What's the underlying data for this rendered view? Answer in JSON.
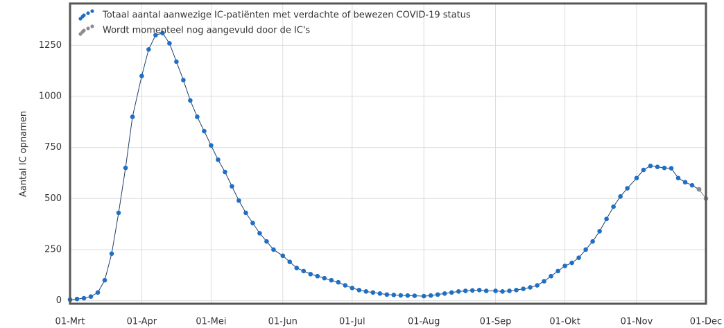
{
  "chart_data": {
    "type": "line",
    "y_label": "Aantal IC opnamen",
    "x": [
      "01-Mrt",
      "04-Mrt",
      "07-Mrt",
      "10-Mrt",
      "13-Mrt",
      "16-Mrt",
      "19-Mrt",
      "22-Mrt",
      "25-Mrt",
      "28-Mrt",
      "01-Apr",
      "04-Apr",
      "07-Apr",
      "10-Apr",
      "13-Apr",
      "16-Apr",
      "19-Apr",
      "22-Apr",
      "25-Apr",
      "28-Apr",
      "01-Mei",
      "04-Mei",
      "07-Mei",
      "10-Mei",
      "13-Mei",
      "16-Mei",
      "19-Mei",
      "22-Mei",
      "25-Mei",
      "28-Mei",
      "01-Jun",
      "04-Jun",
      "07-Jun",
      "10-Jun",
      "13-Jun",
      "16-Jun",
      "19-Jun",
      "22-Jun",
      "25-Jun",
      "28-Jun",
      "01-Jul",
      "04-Jul",
      "07-Jul",
      "10-Jul",
      "13-Jul",
      "16-Jul",
      "19-Jul",
      "22-Jul",
      "25-Jul",
      "28-Jul",
      "01-Aug",
      "04-Aug",
      "07-Aug",
      "10-Aug",
      "13-Aug",
      "16-Aug",
      "19-Aug",
      "22-Aug",
      "25-Aug",
      "28-Aug",
      "01-Sep",
      "04-Sep",
      "07-Sep",
      "10-Sep",
      "13-Sep",
      "16-Sep",
      "19-Sep",
      "22-Sep",
      "25-Sep",
      "28-Sep",
      "01-Okt",
      "04-Okt",
      "07-Okt",
      "10-Okt",
      "13-Okt",
      "16-Okt",
      "19-Okt",
      "22-Okt",
      "25-Okt",
      "28-Okt",
      "01-Nov",
      "04-Nov",
      "07-Nov",
      "10-Nov",
      "13-Nov",
      "16-Nov",
      "19-Nov",
      "22-Nov",
      "25-Nov",
      "28-Nov",
      "01-Dec"
    ],
    "series": [
      {
        "name": "Totaal aantal aanwezige IC-patiënten met verdachte of bewezen COVID-19 status",
        "color": "#1f6fc5",
        "values": [
          5,
          8,
          12,
          20,
          40,
          100,
          230,
          430,
          650,
          900,
          1100,
          1230,
          1300,
          1310,
          1260,
          1170,
          1080,
          980,
          900,
          830,
          760,
          690,
          630,
          560,
          490,
          430,
          380,
          330,
          290,
          250,
          220,
          190,
          160,
          145,
          130,
          120,
          110,
          100,
          90,
          75,
          62,
          52,
          45,
          40,
          35,
          30,
          28,
          26,
          25,
          24,
          22,
          25,
          30,
          35,
          40,
          45,
          48,
          50,
          52,
          48,
          48,
          45,
          48,
          52,
          58,
          65,
          75,
          95,
          120,
          145,
          170,
          185,
          210,
          250,
          290,
          340,
          400,
          460,
          510,
          550,
          600,
          640,
          660,
          655,
          650,
          648,
          600,
          580,
          565,
          545,
          null
        ]
      },
      {
        "name": "Wordt momenteel nog aangevuld door de IC's",
        "color": "#8c8c8c",
        "values": [
          null,
          null,
          null,
          null,
          null,
          null,
          null,
          null,
          null,
          null,
          null,
          null,
          null,
          null,
          null,
          null,
          null,
          null,
          null,
          null,
          null,
          null,
          null,
          null,
          null,
          null,
          null,
          null,
          null,
          null,
          null,
          null,
          null,
          null,
          null,
          null,
          null,
          null,
          null,
          null,
          null,
          null,
          null,
          null,
          null,
          null,
          null,
          null,
          null,
          null,
          null,
          null,
          null,
          null,
          null,
          null,
          null,
          null,
          null,
          null,
          null,
          null,
          null,
          null,
          null,
          null,
          null,
          null,
          null,
          null,
          null,
          null,
          null,
          null,
          null,
          null,
          null,
          null,
          null,
          null,
          null,
          null,
          null,
          null,
          null,
          null,
          null,
          null,
          null,
          545,
          500
        ]
      }
    ],
    "xticks": [
      "01-Mrt",
      "01-Apr",
      "01-Mei",
      "01-Jun",
      "01-Jul",
      "01-Aug",
      "01-Sep",
      "01-Okt",
      "01-Nov",
      "01-Dec"
    ],
    "ylim": [
      -15,
      1455
    ],
    "yticks": [
      0,
      250,
      500,
      750,
      1000,
      1250
    ],
    "grid": true
  }
}
